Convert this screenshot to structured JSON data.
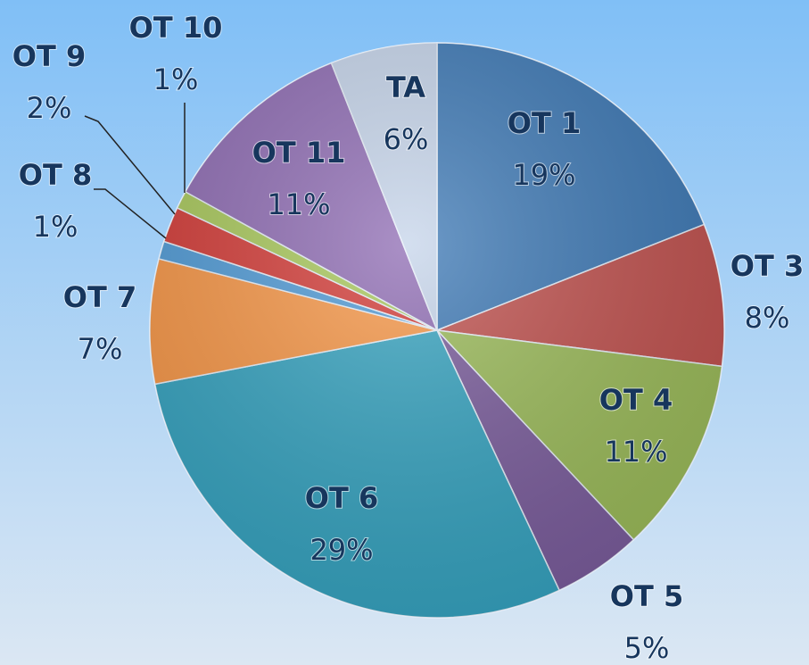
{
  "chart_data": {
    "type": "pie",
    "categories": [
      "OT 1",
      "OT 3",
      "OT 4",
      "OT 5",
      "OT 6",
      "OT 7",
      "OT 8",
      "OT 9",
      "OT 10",
      "OT 11",
      "TA"
    ],
    "values": [
      19,
      8,
      11,
      5,
      29,
      7,
      1,
      2,
      1,
      11,
      6
    ],
    "value_labels": [
      "19%",
      "8%",
      "11%",
      "5%",
      "29%",
      "7%",
      "1%",
      "2%",
      "1%",
      "11%",
      "6%"
    ],
    "colors": [
      "#3c78b5",
      "#c0504d",
      "#9bbb59",
      "#7a5c9c",
      "#35a3c0",
      "#f79646",
      "#4f9ad6",
      "#d33a36",
      "#a8c85a",
      "#8e6bb3",
      "#c5d4ea"
    ]
  }
}
